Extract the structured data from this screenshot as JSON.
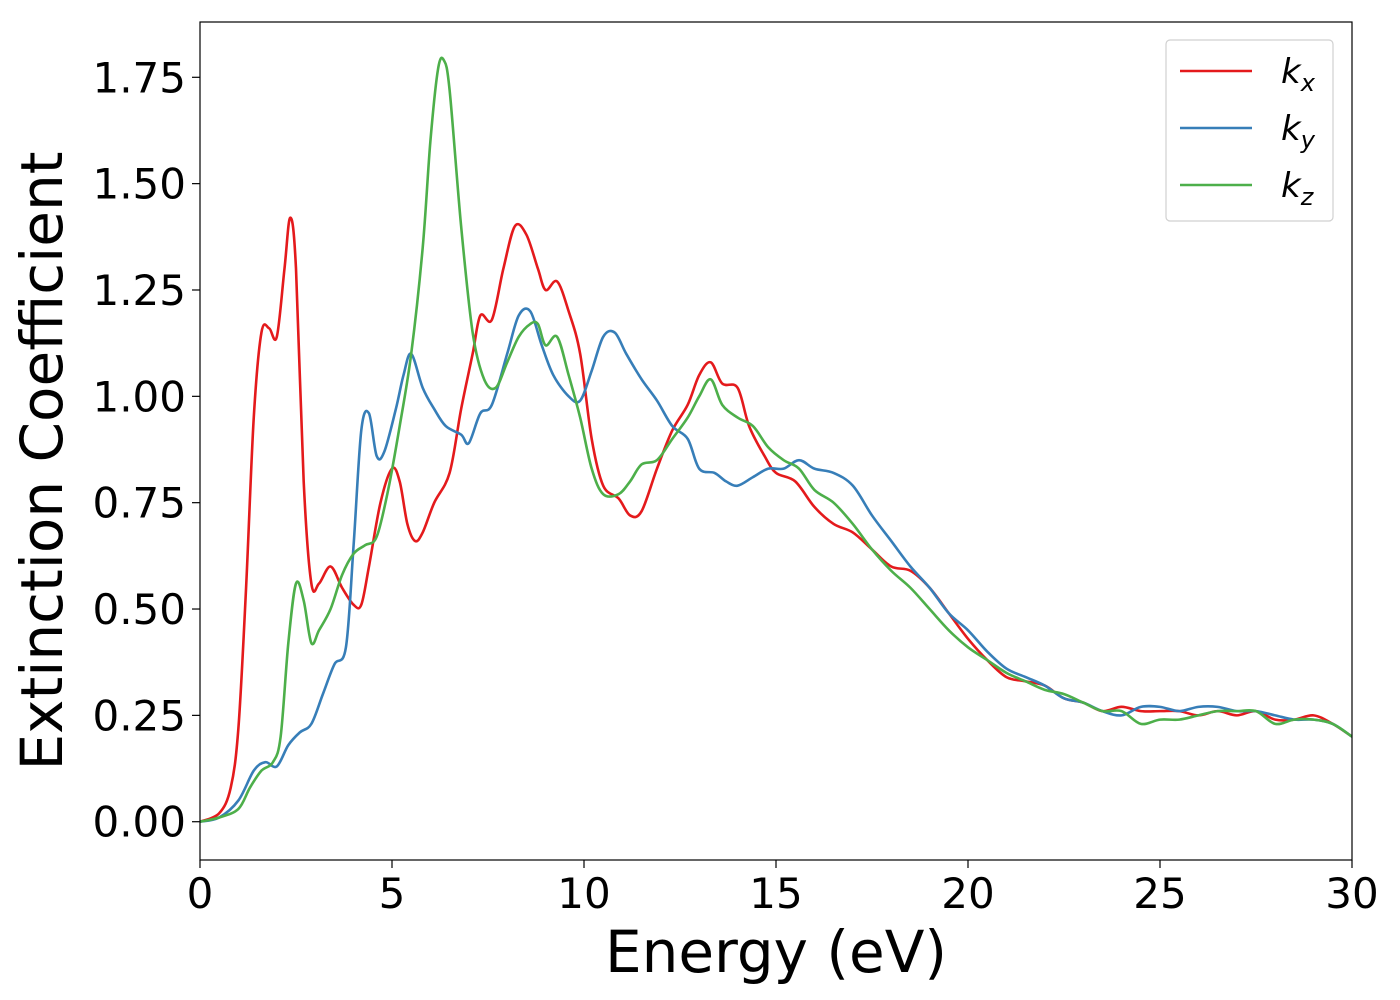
{
  "chart_data": {
    "type": "line",
    "title": "",
    "xlabel": "Energy (eV)",
    "ylabel": "Extinction Coefficient",
    "xlim": [
      0,
      30
    ],
    "ylim": [
      -0.09,
      1.88
    ],
    "xticks": [
      0,
      5,
      10,
      15,
      20,
      25,
      30
    ],
    "yticks": [
      0.0,
      0.25,
      0.5,
      0.75,
      1.0,
      1.25,
      1.5,
      1.75
    ],
    "xtick_labels": [
      "0",
      "5",
      "10",
      "15",
      "20",
      "25",
      "30"
    ],
    "ytick_labels": [
      "0.00",
      "0.25",
      "0.50",
      "0.75",
      "1.00",
      "1.25",
      "1.50",
      "1.75"
    ],
    "grid": false,
    "legend_position": "top-right",
    "series": [
      {
        "name": "k_x",
        "label_main": "k",
        "label_sub": "x",
        "color": "#e41a1c",
        "points": [
          [
            0,
            0
          ],
          [
            0.5,
            0.02
          ],
          [
            0.8,
            0.08
          ],
          [
            1.0,
            0.22
          ],
          [
            1.2,
            0.55
          ],
          [
            1.4,
            0.95
          ],
          [
            1.6,
            1.15
          ],
          [
            1.8,
            1.16
          ],
          [
            2.0,
            1.14
          ],
          [
            2.2,
            1.3
          ],
          [
            2.35,
            1.42
          ],
          [
            2.5,
            1.3
          ],
          [
            2.7,
            0.8
          ],
          [
            2.9,
            0.56
          ],
          [
            3.1,
            0.56
          ],
          [
            3.4,
            0.6
          ],
          [
            3.7,
            0.55
          ],
          [
            4.0,
            0.51
          ],
          [
            4.2,
            0.51
          ],
          [
            4.4,
            0.6
          ],
          [
            4.7,
            0.75
          ],
          [
            5.0,
            0.83
          ],
          [
            5.2,
            0.8
          ],
          [
            5.4,
            0.7
          ],
          [
            5.6,
            0.66
          ],
          [
            5.8,
            0.68
          ],
          [
            6.1,
            0.75
          ],
          [
            6.5,
            0.82
          ],
          [
            6.8,
            0.97
          ],
          [
            7.1,
            1.1
          ],
          [
            7.3,
            1.19
          ],
          [
            7.6,
            1.18
          ],
          [
            7.9,
            1.3
          ],
          [
            8.2,
            1.4
          ],
          [
            8.5,
            1.38
          ],
          [
            8.8,
            1.3
          ],
          [
            9.0,
            1.25
          ],
          [
            9.3,
            1.27
          ],
          [
            9.6,
            1.2
          ],
          [
            9.9,
            1.1
          ],
          [
            10.2,
            0.9
          ],
          [
            10.5,
            0.79
          ],
          [
            10.9,
            0.76
          ],
          [
            11.2,
            0.72
          ],
          [
            11.5,
            0.73
          ],
          [
            11.9,
            0.83
          ],
          [
            12.3,
            0.92
          ],
          [
            12.7,
            0.98
          ],
          [
            13.0,
            1.05
          ],
          [
            13.3,
            1.08
          ],
          [
            13.6,
            1.03
          ],
          [
            14.0,
            1.02
          ],
          [
            14.3,
            0.93
          ],
          [
            14.7,
            0.86
          ],
          [
            15.0,
            0.82
          ],
          [
            15.5,
            0.8
          ],
          [
            16.0,
            0.74
          ],
          [
            16.5,
            0.7
          ],
          [
            17.0,
            0.68
          ],
          [
            17.5,
            0.64
          ],
          [
            18.0,
            0.6
          ],
          [
            18.5,
            0.59
          ],
          [
            19.0,
            0.55
          ],
          [
            19.5,
            0.49
          ],
          [
            20.0,
            0.43
          ],
          [
            20.5,
            0.38
          ],
          [
            21.0,
            0.34
          ],
          [
            21.5,
            0.33
          ],
          [
            22.0,
            0.32
          ],
          [
            22.5,
            0.29
          ],
          [
            23.0,
            0.28
          ],
          [
            23.5,
            0.26
          ],
          [
            24.0,
            0.27
          ],
          [
            24.5,
            0.26
          ],
          [
            25.0,
            0.26
          ],
          [
            25.5,
            0.26
          ],
          [
            26.0,
            0.25
          ],
          [
            26.5,
            0.26
          ],
          [
            27.0,
            0.25
          ],
          [
            27.5,
            0.26
          ],
          [
            28.0,
            0.24
          ],
          [
            28.5,
            0.24
          ],
          [
            29.0,
            0.25
          ],
          [
            29.5,
            0.23
          ],
          [
            30.0,
            0.2
          ]
        ]
      },
      {
        "name": "k_y",
        "label_main": "k",
        "label_sub": "y",
        "color": "#377eb8",
        "points": [
          [
            0,
            0
          ],
          [
            0.5,
            0.01
          ],
          [
            1.0,
            0.05
          ],
          [
            1.4,
            0.12
          ],
          [
            1.7,
            0.14
          ],
          [
            2.0,
            0.13
          ],
          [
            2.3,
            0.18
          ],
          [
            2.6,
            0.21
          ],
          [
            2.9,
            0.23
          ],
          [
            3.2,
            0.3
          ],
          [
            3.5,
            0.37
          ],
          [
            3.8,
            0.41
          ],
          [
            4.0,
            0.65
          ],
          [
            4.2,
            0.92
          ],
          [
            4.4,
            0.96
          ],
          [
            4.6,
            0.86
          ],
          [
            4.8,
            0.87
          ],
          [
            5.1,
            0.97
          ],
          [
            5.3,
            1.05
          ],
          [
            5.5,
            1.1
          ],
          [
            5.8,
            1.02
          ],
          [
            6.1,
            0.97
          ],
          [
            6.4,
            0.93
          ],
          [
            6.8,
            0.91
          ],
          [
            7.0,
            0.89
          ],
          [
            7.3,
            0.96
          ],
          [
            7.6,
            0.98
          ],
          [
            8.0,
            1.1
          ],
          [
            8.3,
            1.19
          ],
          [
            8.6,
            1.2
          ],
          [
            8.9,
            1.12
          ],
          [
            9.2,
            1.05
          ],
          [
            9.6,
            1.0
          ],
          [
            9.9,
            0.99
          ],
          [
            10.2,
            1.06
          ],
          [
            10.5,
            1.14
          ],
          [
            10.8,
            1.15
          ],
          [
            11.1,
            1.1
          ],
          [
            11.5,
            1.04
          ],
          [
            11.9,
            0.99
          ],
          [
            12.3,
            0.93
          ],
          [
            12.7,
            0.9
          ],
          [
            13.0,
            0.83
          ],
          [
            13.4,
            0.82
          ],
          [
            13.7,
            0.8
          ],
          [
            14.0,
            0.79
          ],
          [
            14.4,
            0.81
          ],
          [
            14.8,
            0.83
          ],
          [
            15.2,
            0.83
          ],
          [
            15.6,
            0.85
          ],
          [
            16.0,
            0.83
          ],
          [
            16.5,
            0.82
          ],
          [
            17.0,
            0.79
          ],
          [
            17.5,
            0.72
          ],
          [
            18.0,
            0.66
          ],
          [
            18.5,
            0.6
          ],
          [
            19.0,
            0.55
          ],
          [
            19.5,
            0.49
          ],
          [
            20.0,
            0.45
          ],
          [
            20.5,
            0.4
          ],
          [
            21.0,
            0.36
          ],
          [
            21.5,
            0.34
          ],
          [
            22.0,
            0.32
          ],
          [
            22.5,
            0.29
          ],
          [
            23.0,
            0.28
          ],
          [
            23.5,
            0.26
          ],
          [
            24.0,
            0.25
          ],
          [
            24.5,
            0.27
          ],
          [
            25.0,
            0.27
          ],
          [
            25.5,
            0.26
          ],
          [
            26.0,
            0.27
          ],
          [
            26.5,
            0.27
          ],
          [
            27.0,
            0.26
          ],
          [
            27.5,
            0.26
          ],
          [
            28.0,
            0.25
          ],
          [
            28.5,
            0.24
          ],
          [
            29.0,
            0.24
          ],
          [
            29.5,
            0.23
          ],
          [
            30.0,
            0.2
          ]
        ]
      },
      {
        "name": "k_z",
        "label_main": "k",
        "label_sub": "z",
        "color": "#4daf4a",
        "points": [
          [
            0,
            0
          ],
          [
            0.5,
            0.01
          ],
          [
            1.0,
            0.03
          ],
          [
            1.3,
            0.08
          ],
          [
            1.6,
            0.12
          ],
          [
            1.9,
            0.14
          ],
          [
            2.1,
            0.2
          ],
          [
            2.3,
            0.42
          ],
          [
            2.5,
            0.56
          ],
          [
            2.7,
            0.52
          ],
          [
            2.9,
            0.42
          ],
          [
            3.1,
            0.45
          ],
          [
            3.4,
            0.5
          ],
          [
            3.7,
            0.58
          ],
          [
            4.0,
            0.63
          ],
          [
            4.3,
            0.65
          ],
          [
            4.6,
            0.67
          ],
          [
            4.9,
            0.78
          ],
          [
            5.2,
            0.93
          ],
          [
            5.5,
            1.1
          ],
          [
            5.8,
            1.35
          ],
          [
            6.0,
            1.6
          ],
          [
            6.2,
            1.77
          ],
          [
            6.35,
            1.79
          ],
          [
            6.5,
            1.72
          ],
          [
            6.8,
            1.4
          ],
          [
            7.1,
            1.15
          ],
          [
            7.4,
            1.04
          ],
          [
            7.7,
            1.02
          ],
          [
            8.0,
            1.08
          ],
          [
            8.3,
            1.14
          ],
          [
            8.6,
            1.17
          ],
          [
            8.8,
            1.17
          ],
          [
            9.0,
            1.12
          ],
          [
            9.3,
            1.14
          ],
          [
            9.6,
            1.05
          ],
          [
            9.9,
            0.95
          ],
          [
            10.2,
            0.83
          ],
          [
            10.5,
            0.77
          ],
          [
            10.9,
            0.77
          ],
          [
            11.2,
            0.8
          ],
          [
            11.5,
            0.84
          ],
          [
            11.9,
            0.85
          ],
          [
            12.3,
            0.9
          ],
          [
            12.7,
            0.95
          ],
          [
            13.0,
            1.0
          ],
          [
            13.3,
            1.04
          ],
          [
            13.6,
            0.98
          ],
          [
            14.0,
            0.95
          ],
          [
            14.4,
            0.93
          ],
          [
            14.8,
            0.88
          ],
          [
            15.2,
            0.85
          ],
          [
            15.6,
            0.83
          ],
          [
            16.0,
            0.78
          ],
          [
            16.5,
            0.75
          ],
          [
            17.0,
            0.7
          ],
          [
            17.5,
            0.64
          ],
          [
            18.0,
            0.59
          ],
          [
            18.5,
            0.55
          ],
          [
            19.0,
            0.5
          ],
          [
            19.5,
            0.45
          ],
          [
            20.0,
            0.41
          ],
          [
            20.5,
            0.38
          ],
          [
            21.0,
            0.35
          ],
          [
            21.5,
            0.33
          ],
          [
            22.0,
            0.31
          ],
          [
            22.5,
            0.3
          ],
          [
            23.0,
            0.28
          ],
          [
            23.5,
            0.26
          ],
          [
            24.0,
            0.26
          ],
          [
            24.5,
            0.23
          ],
          [
            25.0,
            0.24
          ],
          [
            25.5,
            0.24
          ],
          [
            26.0,
            0.25
          ],
          [
            26.5,
            0.26
          ],
          [
            27.0,
            0.26
          ],
          [
            27.5,
            0.26
          ],
          [
            28.0,
            0.23
          ],
          [
            28.5,
            0.24
          ],
          [
            29.0,
            0.24
          ],
          [
            29.5,
            0.23
          ],
          [
            30.0,
            0.2
          ]
        ]
      }
    ]
  }
}
